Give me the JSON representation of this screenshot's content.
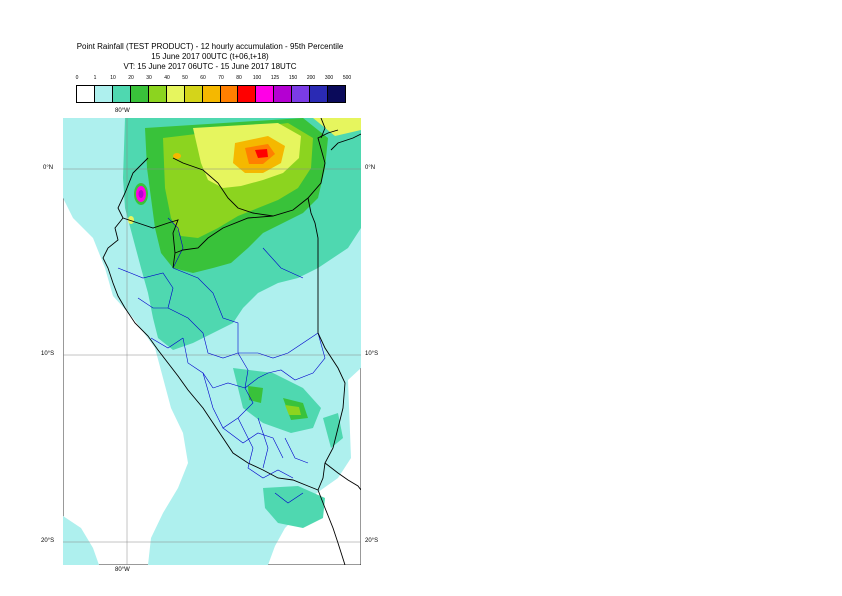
{
  "title": {
    "line1": "Point Rainfall (TEST PRODUCT) - 12 hourly accumulation - 95th Percentile",
    "line2": "15 June 2017 00UTC (t+06,t+18)",
    "line3": "VT: 15 June 2017 06UTC - 15 June 2017 18UTC"
  },
  "legend": {
    "ticks": [
      "0",
      "1",
      "10",
      "20",
      "30",
      "40",
      "50",
      "60",
      "70",
      "80",
      "100",
      "125",
      "150",
      "200",
      "300",
      "500"
    ],
    "colors": [
      "#ffffff",
      "#aef0ee",
      "#4fd8b0",
      "#39c23a",
      "#8cd41f",
      "#e6f55e",
      "#d4d41a",
      "#f5b800",
      "#ff7f00",
      "#ff0000",
      "#ff00e6",
      "#b400d2",
      "#7b3ce6",
      "#2a2ab4",
      "#0a0a5a"
    ]
  },
  "map": {
    "lon_labels": [
      "80°W"
    ],
    "lat_labels": [
      "0°N",
      "10°S",
      "20°S"
    ],
    "map_colors": {
      "light": "#aef0ee",
      "teal": "#4fd8b0",
      "green": "#39c23a",
      "yellowgreen": "#8cd41f",
      "yellow": "#e6f55e",
      "orange": "#f5b800",
      "dark_orange": "#ff7f00",
      "red": "#ff0000",
      "magenta": "#ff00e6",
      "purple": "#b400d2",
      "coast": "#000000",
      "border": "#0000cc",
      "grid": "#888888"
    }
  }
}
